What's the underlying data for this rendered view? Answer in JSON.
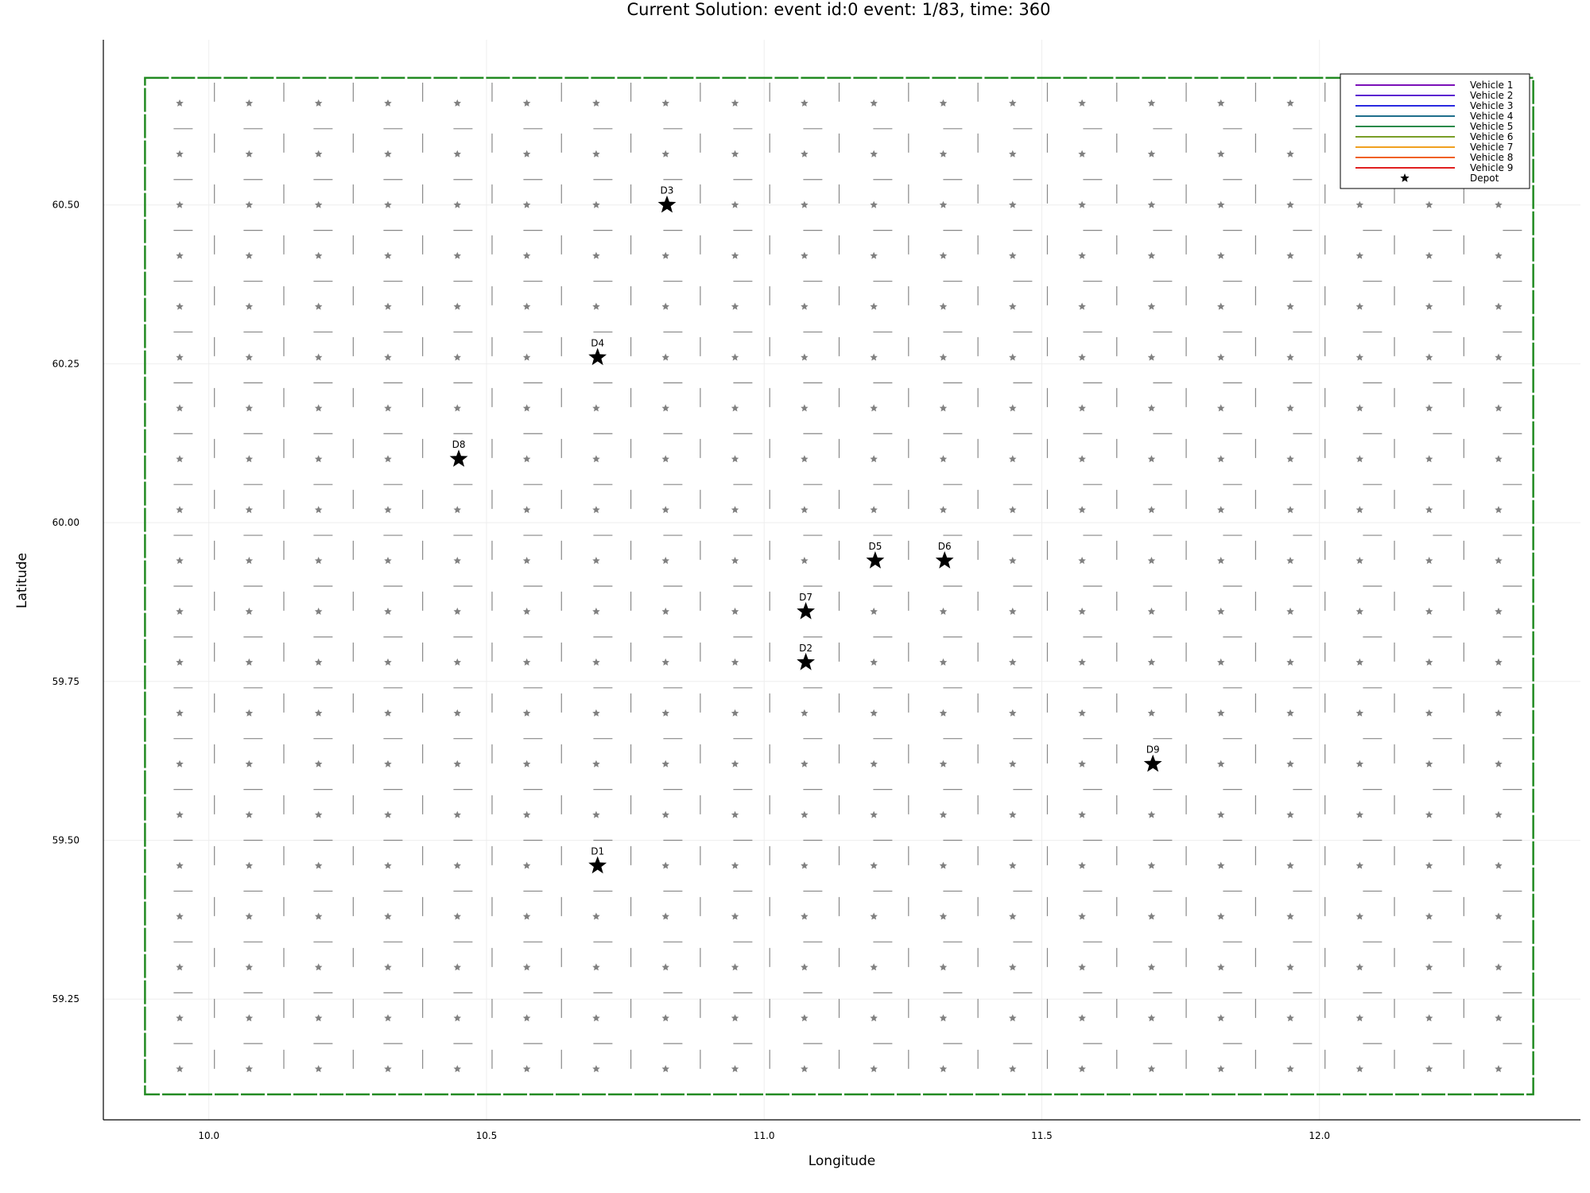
{
  "chart_data": {
    "type": "scatter",
    "title": "Current Solution: event id:0 event: 1/83, time: 360",
    "xlabel": "Longitude",
    "ylabel": "Latitude",
    "xlim": [
      9.81,
      12.47
    ],
    "ylim": [
      59.06,
      60.76
    ],
    "x_ticks": [
      {
        "value": 10.0,
        "label": "10.0"
      },
      {
        "value": 10.5,
        "label": "10.5"
      },
      {
        "value": 11.0,
        "label": "11.0"
      },
      {
        "value": 11.5,
        "label": "11.5"
      },
      {
        "value": 12.0,
        "label": "12.0"
      }
    ],
    "y_ticks": [
      {
        "value": 59.25,
        "label": "59.25"
      },
      {
        "value": 59.5,
        "label": "59.50"
      },
      {
        "value": 59.75,
        "label": "59.75"
      },
      {
        "value": 60.0,
        "label": "60.00"
      },
      {
        "value": 60.25,
        "label": "60.25"
      },
      {
        "value": 60.5,
        "label": "60.50"
      }
    ],
    "grid": true,
    "boundary": {
      "x": [
        9.885,
        12.385
      ],
      "y": [
        59.1,
        60.7
      ],
      "color": "#228b22"
    },
    "cell_grid": {
      "x_start": 9.885,
      "x_step": 0.125,
      "x_count": 20,
      "y_start": 59.1,
      "y_step": 0.08,
      "y_count": 20,
      "color": "#888888"
    },
    "nodes": {
      "x_start": 9.9475,
      "x_step": 0.125,
      "x_count": 20,
      "y_start": 59.14,
      "y_step": 0.08,
      "y_count": 20,
      "color": "#808080"
    },
    "depots": [
      {
        "label": "D1",
        "x": 10.7,
        "y": 59.46
      },
      {
        "label": "D2",
        "x": 11.075,
        "y": 59.78
      },
      {
        "label": "D3",
        "x": 10.825,
        "y": 60.5
      },
      {
        "label": "D4",
        "x": 10.7,
        "y": 60.26
      },
      {
        "label": "D5",
        "x": 11.2,
        "y": 59.94
      },
      {
        "label": "D6",
        "x": 11.325,
        "y": 59.94
      },
      {
        "label": "D7",
        "x": 11.075,
        "y": 59.86
      },
      {
        "label": "D8",
        "x": 10.45,
        "y": 60.1
      },
      {
        "label": "D9",
        "x": 11.7,
        "y": 59.62
      }
    ],
    "legend": {
      "position": "top-right",
      "entries": [
        {
          "name": "Vehicle 1",
          "color": "#7b10b8"
        },
        {
          "name": "Vehicle 2",
          "color": "#5a1fd0"
        },
        {
          "name": "Vehicle 3",
          "color": "#2a2ae0"
        },
        {
          "name": "Vehicle 4",
          "color": "#1f6e8c"
        },
        {
          "name": "Vehicle 5",
          "color": "#2a8a4a"
        },
        {
          "name": "Vehicle 6",
          "color": "#7a9e28"
        },
        {
          "name": "Vehicle 7",
          "color": "#f0a020"
        },
        {
          "name": "Vehicle 8",
          "color": "#f06020"
        },
        {
          "name": "Vehicle 9",
          "color": "#e02020"
        },
        {
          "name": "Depot",
          "color": "#000000",
          "marker": "star"
        }
      ]
    }
  }
}
